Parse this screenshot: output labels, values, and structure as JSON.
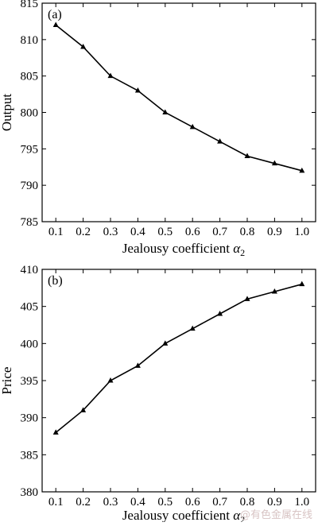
{
  "chart_data": [
    {
      "type": "line",
      "panel_label": "(a)",
      "xlabel": "Jealousy coefficient",
      "xlabel_symbol": "α",
      "xlabel_subscript": "2",
      "ylabel": "Output",
      "x": [
        0.1,
        0.2,
        0.3,
        0.4,
        0.5,
        0.6,
        0.7,
        0.8,
        0.9,
        1.0
      ],
      "x_tick_labels": [
        "0.1",
        "0.2",
        "0.3",
        "0.4",
        "0.5",
        "0.6",
        "0.7",
        "0.8",
        "0.9",
        "1.0"
      ],
      "y_ticks": [
        785,
        790,
        795,
        800,
        805,
        810,
        815
      ],
      "ylim": [
        785,
        815
      ],
      "xlim": [
        0.05,
        1.05
      ],
      "marker": "triangle",
      "series": [
        {
          "values": [
            812,
            809,
            805,
            803,
            800,
            798,
            796,
            794,
            793,
            792
          ]
        }
      ],
      "grid": false
    },
    {
      "type": "line",
      "panel_label": "(b)",
      "xlabel": "Jealousy coefficient",
      "xlabel_symbol": "α",
      "xlabel_subscript": "2",
      "ylabel": "Price",
      "x": [
        0.1,
        0.2,
        0.3,
        0.4,
        0.5,
        0.6,
        0.7,
        0.8,
        0.9,
        1.0
      ],
      "x_tick_labels": [
        "0.1",
        "0.2",
        "0.3",
        "0.4",
        "0.5",
        "0.6",
        "0.7",
        "0.8",
        "0.9",
        "1.0"
      ],
      "y_ticks": [
        380,
        385,
        390,
        395,
        400,
        405,
        410
      ],
      "ylim": [
        380,
        410
      ],
      "xlim": [
        0.05,
        1.05
      ],
      "marker": "triangle",
      "series": [
        {
          "values": [
            388,
            391,
            395,
            397,
            400,
            402,
            404,
            406,
            407,
            408
          ]
        }
      ],
      "grid": false
    }
  ],
  "watermark": "@有色金属在线"
}
